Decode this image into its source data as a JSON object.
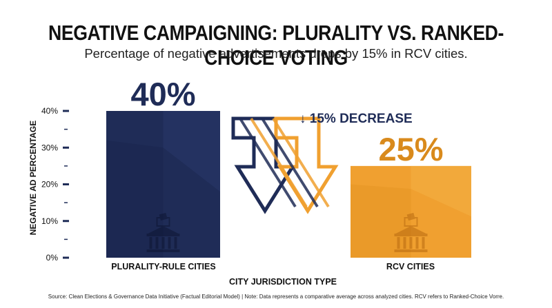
{
  "title": "NEGATIVE CAMPAIGNING: PLURALITY VS. RANKED-CHOICE VOTING",
  "subtitle": "Percentage of negative advertisements drops by 15% in RCV cities.",
  "source": "Source: Clean Elections & Governance Data Initiative (Factual Editorial Model) | Note: Data represents a comparative average across analyzed cities. RCV refers to Ranked-Choice Vorre.",
  "annotation": "15% DECREASE",
  "colors": {
    "plurality": "#1f2c57",
    "rcv": "#f0a030",
    "rcv_text": "#d98a1c"
  },
  "chart_data": {
    "type": "bar",
    "categories": [
      "PLURALITY-RULE CITIES",
      "RCV CITIES"
    ],
    "values": [
      40,
      25
    ],
    "value_labels": [
      "40%",
      "25%"
    ],
    "xlabel": "CITY JURISDICTION TYPE",
    "ylabel": "NEGATIVE AD PERCENTAGE",
    "ylim": [
      0,
      40
    ],
    "yticks": [
      "0%",
      "10%",
      "20%",
      "30%",
      "40%"
    ],
    "grid": false
  }
}
